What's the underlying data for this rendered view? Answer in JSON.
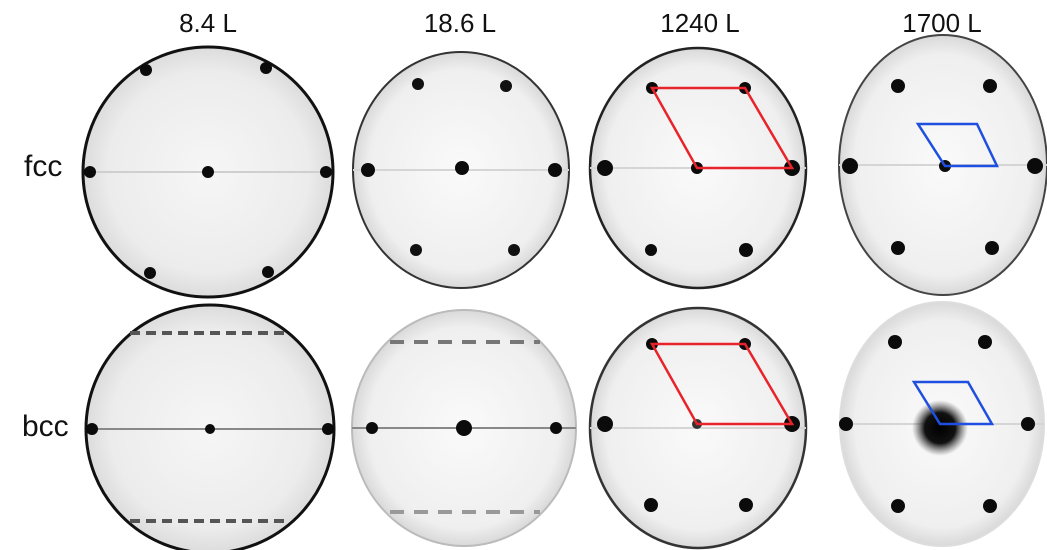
{
  "columns": [
    {
      "label": "8.4 L"
    },
    {
      "label": "18.6 L"
    },
    {
      "label": "1240 L"
    },
    {
      "label": "1700 L"
    }
  ],
  "rows": [
    {
      "label": "fcc"
    },
    {
      "label": "bcc"
    }
  ],
  "colors": {
    "unit_cell_1240": "#e8232a",
    "unit_cell_1700": "#1f4fe0",
    "spot": "#0b0b0b",
    "background": "#ffffff"
  }
}
